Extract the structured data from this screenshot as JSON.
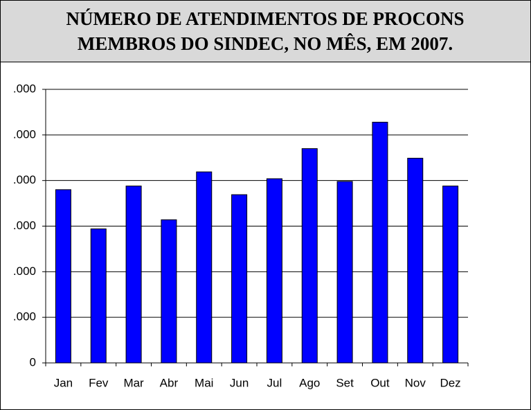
{
  "chart_data": {
    "type": "bar",
    "title": [
      "NÚMERO DE ATENDIMENTOS DE PROCONS",
      "MEMBROS DO SINDEC, NO MÊS, EM 2007."
    ],
    "categories": [
      "Jan",
      "Fev",
      "Mar",
      "Abr",
      "Mai",
      "Jun",
      "Jul",
      "Ago",
      "Set",
      "Out",
      "Nov",
      "Dez"
    ],
    "values": [
      38000,
      29400,
      38800,
      31400,
      41900,
      36900,
      40400,
      47000,
      39800,
      52800,
      44900,
      38800
    ],
    "color": "#0000ff",
    "ylim": [
      0,
      60000
    ],
    "yticks": [
      0,
      {
        "value": 10000,
        "label": ".000"
      },
      {
        "value": 20000,
        "label": ".000"
      },
      {
        "value": 30000,
        "label": ".000"
      },
      {
        "value": 40000,
        "label": ".000"
      },
      {
        "value": 50000,
        "label": ".000"
      },
      {
        "value": 60000,
        "label": ".000"
      }
    ],
    "grid": true
  }
}
